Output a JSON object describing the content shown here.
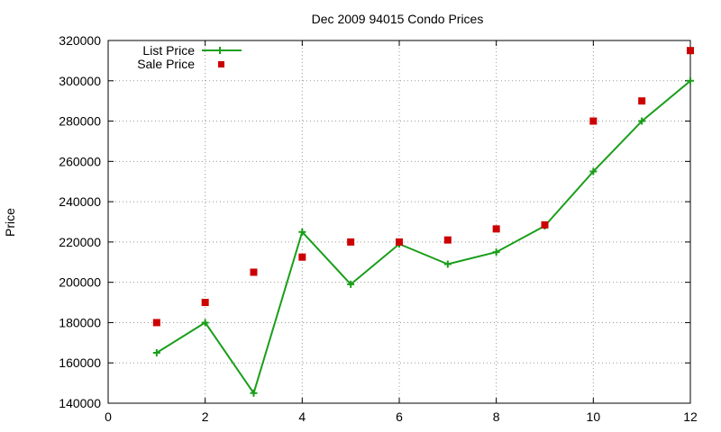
{
  "chart_data": {
    "type": "line",
    "title": "Dec 2009 94015 Condo Prices",
    "xlabel": "",
    "ylabel": "Price",
    "xlim": [
      0,
      12
    ],
    "ylim": [
      140000,
      320000
    ],
    "x_ticks": [
      0,
      2,
      4,
      6,
      8,
      10,
      12
    ],
    "y_ticks": [
      140000,
      160000,
      180000,
      200000,
      220000,
      240000,
      260000,
      280000,
      300000,
      320000
    ],
    "grid": true,
    "legend_position": "top-left",
    "series": [
      {
        "name": "List Price",
        "style": "line-with-plus-markers",
        "color": "#1a9e1a",
        "x": [
          1,
          2,
          3,
          4,
          5,
          6,
          7,
          8,
          9,
          10,
          11,
          12
        ],
        "y": [
          165000,
          180000,
          145000,
          225000,
          199000,
          219000,
          209000,
          215000,
          228000,
          255000,
          280000,
          300000
        ]
      },
      {
        "name": "Sale Price",
        "style": "square-markers",
        "color": "#cc0000",
        "x": [
          1,
          2,
          3,
          4,
          5,
          6,
          7,
          8,
          9,
          10,
          11,
          12
        ],
        "y": [
          180000,
          190000,
          205000,
          212500,
          220000,
          220000,
          221000,
          226500,
          228500,
          280000,
          290000,
          315000
        ]
      }
    ]
  }
}
